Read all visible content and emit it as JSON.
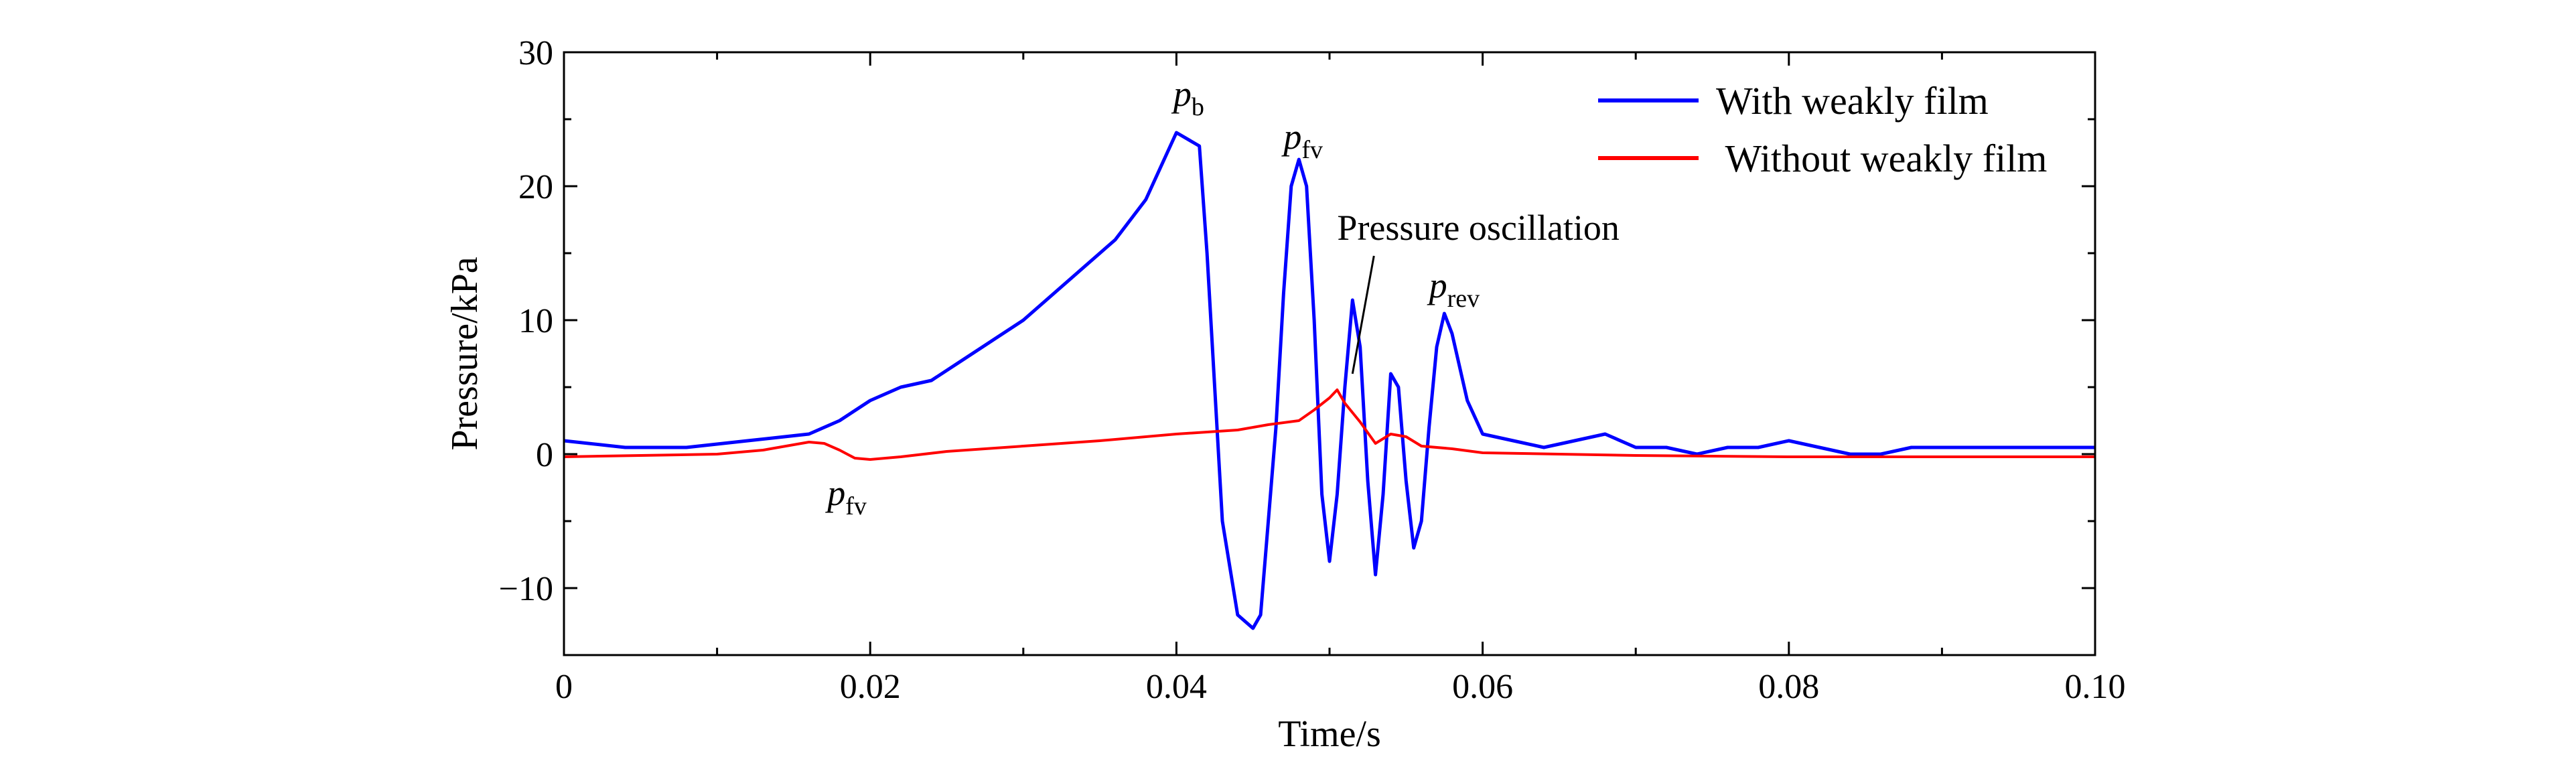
{
  "chart_data": {
    "type": "line",
    "title": "",
    "xlabel": "Time/s",
    "ylabel": "Pressure/kPa",
    "xlim": [
      0,
      0.1
    ],
    "ylim": [
      -15,
      30
    ],
    "x_ticks": [
      0,
      0.02,
      0.04,
      0.06,
      0.08,
      0.1
    ],
    "x_tick_labels": [
      "0",
      "0.02",
      "0.04",
      "0.06",
      "0.08",
      "0.10"
    ],
    "y_ticks": [
      -10,
      0,
      10,
      20,
      30
    ],
    "y_tick_labels": [
      "−10",
      "0",
      "10",
      "20",
      "30"
    ],
    "grid": false,
    "legend_position": "top-right",
    "series": [
      {
        "name": "With weakly film",
        "color": "#0000ff",
        "x": [
          0,
          0.004,
          0.008,
          0.012,
          0.016,
          0.018,
          0.02,
          0.022,
          0.024,
          0.026,
          0.028,
          0.03,
          0.032,
          0.034,
          0.036,
          0.038,
          0.04,
          0.0415,
          0.042,
          0.043,
          0.044,
          0.045,
          0.0455,
          0.046,
          0.0465,
          0.047,
          0.0475,
          0.048,
          0.0485,
          0.049,
          0.0495,
          0.05,
          0.0505,
          0.051,
          0.0515,
          0.052,
          0.0525,
          0.053,
          0.0535,
          0.054,
          0.0545,
          0.055,
          0.0555,
          0.056,
          0.0565,
          0.057,
          0.0575,
          0.058,
          0.059,
          0.06,
          0.062,
          0.064,
          0.066,
          0.068,
          0.07,
          0.072,
          0.074,
          0.076,
          0.078,
          0.08,
          0.082,
          0.084,
          0.086,
          0.088,
          0.09,
          0.092,
          0.094,
          0.096,
          0.098,
          0.1
        ],
        "y": [
          1.0,
          0.5,
          0.5,
          1.0,
          1.5,
          2.5,
          4.0,
          5.0,
          5.5,
          7.0,
          8.5,
          10.0,
          12.0,
          14.0,
          16.0,
          19.0,
          24.0,
          23.0,
          15.0,
          -5.0,
          -12.0,
          -13.0,
          -12.0,
          -5.0,
          2.0,
          12.0,
          20.0,
          22.0,
          20.0,
          10.0,
          -3.0,
          -8.0,
          -3.0,
          5.0,
          11.5,
          8.0,
          -2.0,
          -9.0,
          -3.0,
          6.0,
          5.0,
          -2.0,
          -7.0,
          -5.0,
          2.0,
          8.0,
          10.5,
          9.0,
          4.0,
          1.5,
          1.0,
          0.5,
          1.0,
          1.5,
          0.5,
          0.5,
          0.0,
          0.5,
          0.5,
          1.0,
          0.5,
          0.0,
          0.0,
          0.5,
          0.5,
          0.5,
          0.5,
          0.5,
          0.5,
          0.5
        ]
      },
      {
        "name": " Without weakly film",
        "color": "#ff0000",
        "x": [
          0,
          0.005,
          0.01,
          0.013,
          0.016,
          0.017,
          0.018,
          0.019,
          0.02,
          0.022,
          0.025,
          0.03,
          0.035,
          0.04,
          0.044,
          0.046,
          0.048,
          0.049,
          0.05,
          0.0505,
          0.051,
          0.052,
          0.0525,
          0.053,
          0.054,
          0.055,
          0.056,
          0.058,
          0.06,
          0.065,
          0.07,
          0.08,
          0.09,
          0.1
        ],
        "y": [
          -0.2,
          -0.1,
          0.0,
          0.3,
          0.9,
          0.8,
          0.3,
          -0.3,
          -0.4,
          -0.2,
          0.2,
          0.6,
          1.0,
          1.5,
          1.8,
          2.2,
          2.5,
          3.3,
          4.2,
          4.8,
          3.8,
          2.4,
          1.6,
          0.8,
          1.5,
          1.3,
          0.6,
          0.4,
          0.1,
          0.0,
          -0.1,
          -0.2,
          -0.2,
          -0.2
        ]
      }
    ],
    "annotations": [
      {
        "main": "p",
        "sub": "b",
        "x": 0.0398,
        "y": 26.0
      },
      {
        "main": "p",
        "sub": "fv",
        "x": 0.047,
        "y": 22.8
      },
      {
        "main": "p",
        "sub": "rev",
        "x": 0.0565,
        "y": 11.7
      },
      {
        "main": "p",
        "sub": "fv",
        "x": 0.0172,
        "y": -3.8
      },
      {
        "main": "Pressure oscillation",
        "sub": "",
        "x": 0.0505,
        "y": 16.0
      }
    ],
    "leaders": [
      {
        "from_x": 0.0529,
        "from_y": 14.8,
        "to_x": 0.0515,
        "to_y": 6.0
      }
    ]
  }
}
